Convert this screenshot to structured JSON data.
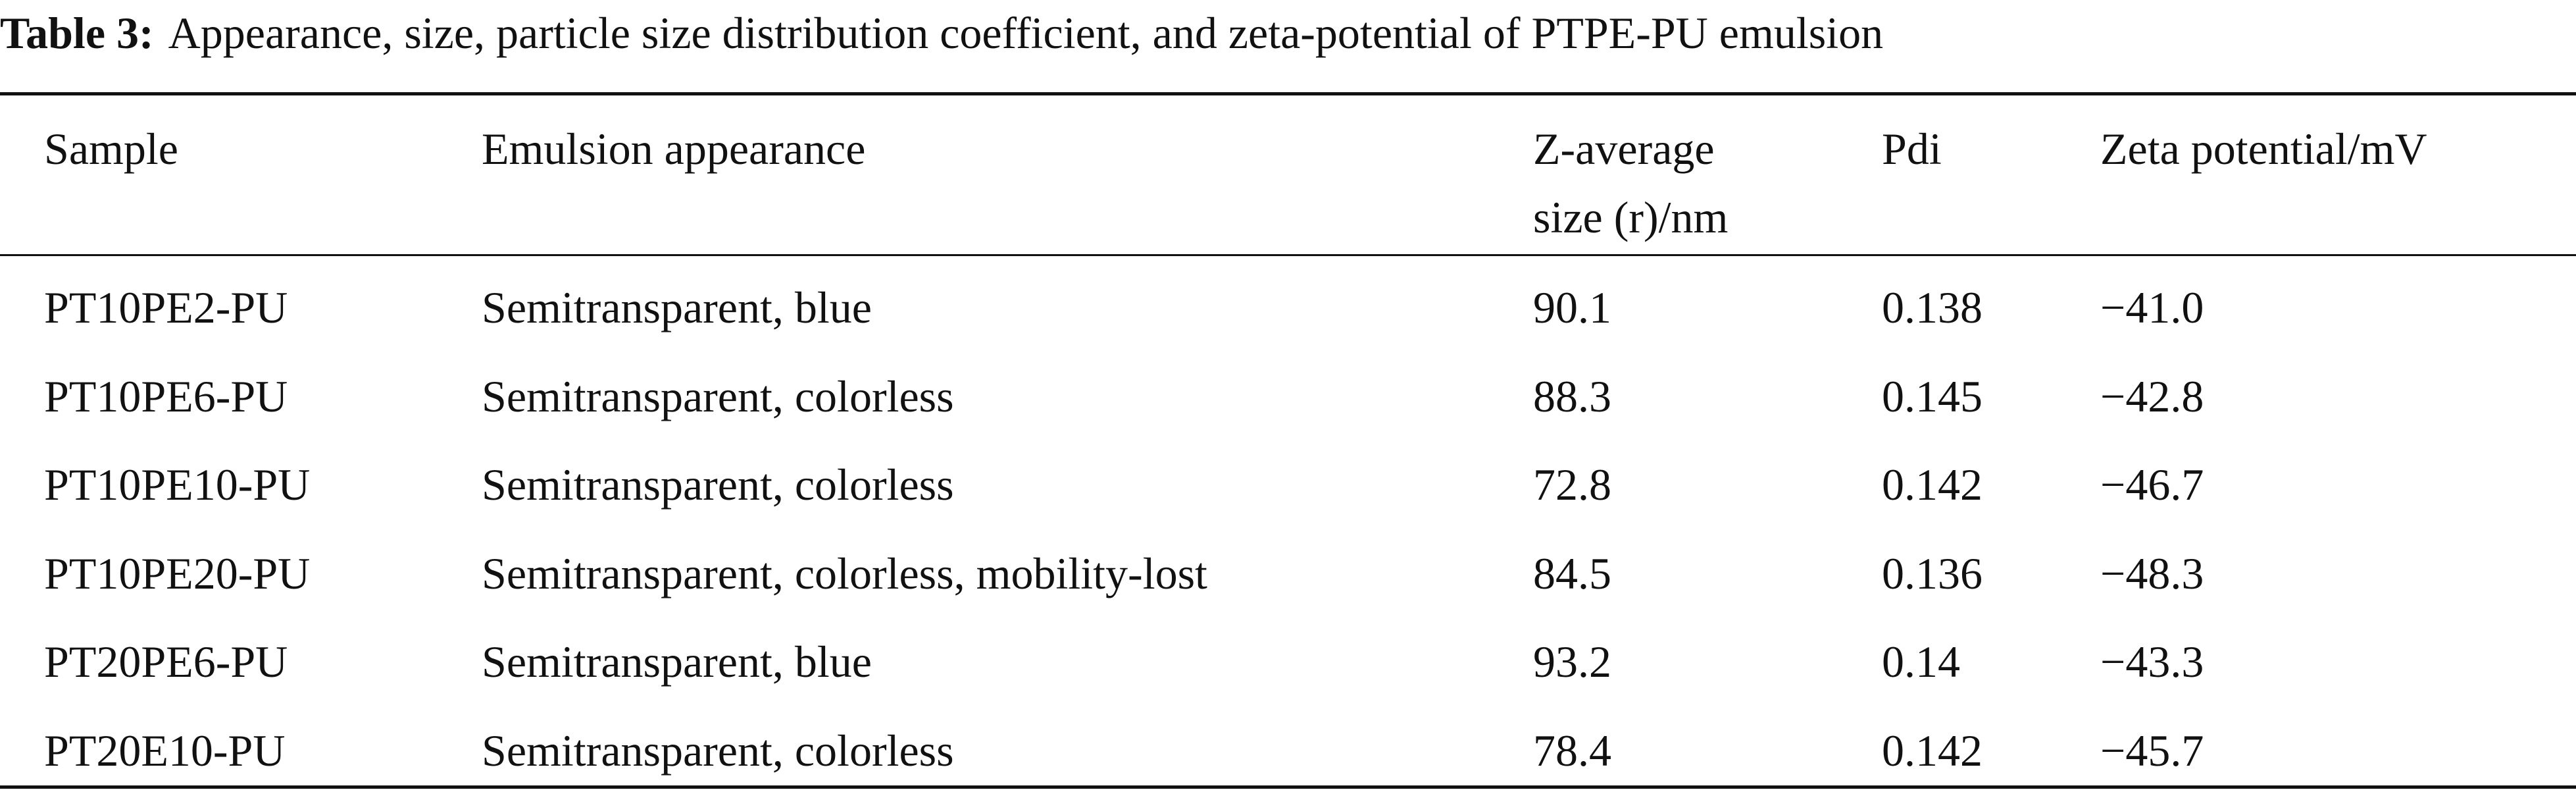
{
  "table": {
    "label": "Table 3:",
    "caption": "Appearance, size, particle size distribution coefficient, and zeta-potential of PTPE-PU emulsion",
    "header": [
      [
        "Sample"
      ],
      [
        "Emulsion appearance"
      ],
      [
        "Z-average",
        "size (r)/nm"
      ],
      [
        "Pdi"
      ],
      [
        "Zeta potential/mV"
      ]
    ],
    "rows": [
      [
        "PT10PE2-PU",
        "Semitransparent, blue",
        "90.1",
        "0.138",
        "−41.0"
      ],
      [
        "PT10PE6-PU",
        "Semitransparent, colorless",
        "88.3",
        "0.145",
        "−42.8"
      ],
      [
        "PT10PE10-PU",
        "Semitransparent, colorless",
        "72.8",
        "0.142",
        "−46.7"
      ],
      [
        "PT10PE20-PU",
        "Semitransparent, colorless, mobility-lost",
        "84.5",
        "0.136",
        "−48.3"
      ],
      [
        "PT20PE6-PU",
        "Semitransparent, blue",
        "93.2",
        "0.14",
        "−43.3"
      ],
      [
        "PT20E10-PU",
        "Semitransparent, colorless",
        "78.4",
        "0.142",
        "−45.7"
      ]
    ]
  }
}
